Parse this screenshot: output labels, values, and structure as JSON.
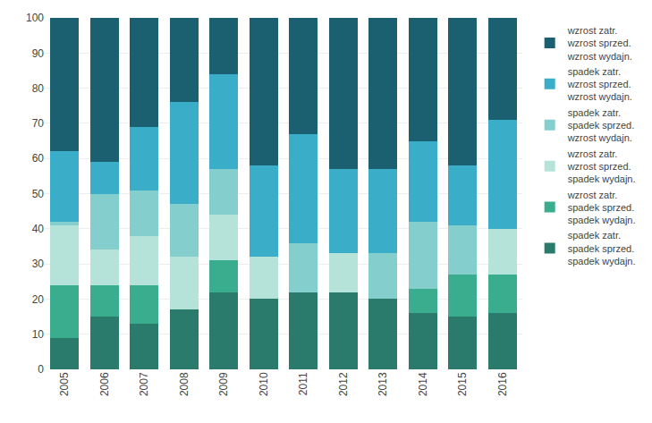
{
  "chart_data": {
    "type": "bar",
    "stacked": true,
    "categories": [
      "2005",
      "2006",
      "2007",
      "2008",
      "2009",
      "2010",
      "2011",
      "2012",
      "2013",
      "2014",
      "2015",
      "2016"
    ],
    "series": [
      {
        "name": "spadek zatr.\nspadek sprzed.\nspadek wydajn.",
        "color": "#2a7b6c",
        "values": [
          9,
          15,
          13,
          17,
          22,
          20,
          22,
          22,
          20,
          16,
          15,
          16
        ]
      },
      {
        "name": "wzrost zatr.\nspadek sprzed.\nspadek wydajn.",
        "color": "#3aad8e",
        "values": [
          15,
          9,
          11,
          0,
          9,
          0,
          0,
          0,
          0,
          7,
          12,
          11
        ]
      },
      {
        "name": "wzrost zatr.\nwzrost sprzed.\nspadek wydajn.",
        "color": "#b5e3da",
        "values": [
          17,
          10,
          14,
          15,
          13,
          12,
          0,
          11,
          0,
          0,
          0,
          13
        ]
      },
      {
        "name": "spadek zatr.\nspadek sprzed.\nwzrost wydajn.",
        "color": "#85cece",
        "values": [
          1,
          16,
          13,
          15,
          13,
          0,
          14,
          0,
          13,
          19,
          14,
          0
        ]
      },
      {
        "name": "spadek zatr.\nwzrost sprzed.\nwzrost wydajn.",
        "color": "#3aaec8",
        "values": [
          20,
          9,
          18,
          29,
          27,
          26,
          31,
          24,
          24,
          23,
          17,
          31
        ]
      },
      {
        "name": "wzrost zatr.\nwzrost sprzed.\nwzrost wydajn.",
        "color": "#1b6070",
        "values": [
          38,
          41,
          31,
          24,
          16,
          42,
          33,
          43,
          43,
          35,
          42,
          29
        ]
      }
    ],
    "ylim": [
      0,
      100
    ],
    "yticks": [
      0,
      10,
      20,
      30,
      40,
      50,
      60,
      70,
      80,
      90,
      100
    ],
    "grid": true,
    "legend": "right"
  }
}
